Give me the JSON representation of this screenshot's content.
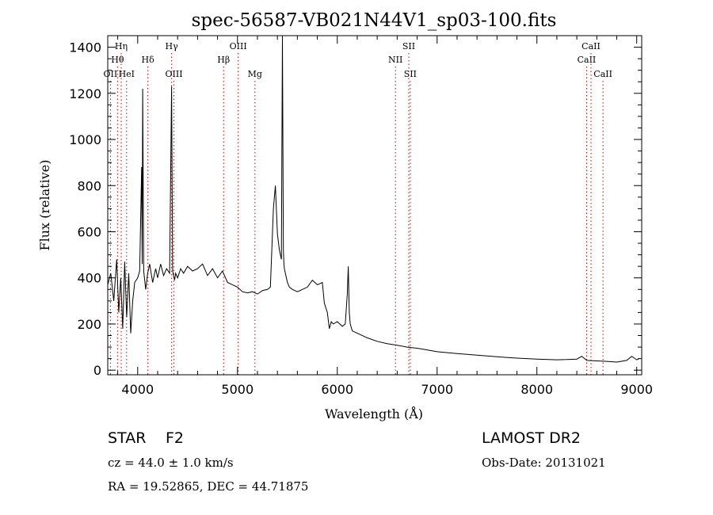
{
  "chart_data": {
    "type": "line",
    "title": "spec-56587-VB021N44V1_sp03-100.fits",
    "xlabel": "Wavelength (Å)",
    "ylabel": "Flux (relative)",
    "xlim": [
      3700,
      9050
    ],
    "ylim": [
      -20,
      1450
    ],
    "xticks": [
      4000,
      5000,
      6000,
      7000,
      8000,
      9000
    ],
    "yticks": [
      0,
      200,
      400,
      600,
      800,
      1000,
      1200,
      1400
    ],
    "grid": false,
    "series": [
      {
        "values_x": [
          3700,
          3730,
          3760,
          3790,
          3810,
          3830,
          3850,
          3870,
          3890,
          3910,
          3930,
          3950,
          3970,
          4000,
          4020,
          4040,
          4045,
          4050,
          4060,
          4080,
          4100,
          4120,
          4150,
          4180,
          4200,
          4230,
          4260,
          4290,
          4320,
          4340,
          4350,
          4360,
          4370,
          4380,
          4400,
          4430,
          4460,
          4500,
          4550,
          4600,
          4650,
          4700,
          4750,
          4800,
          4850,
          4860,
          4870,
          4900,
          4950,
          5000,
          5050,
          5100,
          5150,
          5200,
          5250,
          5300,
          5330,
          5360,
          5380,
          5400,
          5420,
          5440,
          5450,
          5460,
          5465,
          5470,
          5480,
          5500,
          5520,
          5550,
          5600,
          5650,
          5700,
          5750,
          5800,
          5850,
          5870,
          5900,
          5920,
          5940,
          5960,
          6000,
          6050,
          6080,
          6100,
          6110,
          6120,
          6130,
          6150,
          6200,
          6300,
          6400,
          6500,
          6600,
          6700,
          6800,
          6900,
          7000,
          7200,
          7400,
          7600,
          7800,
          8000,
          8200,
          8300,
          8400,
          8450,
          8500,
          8600,
          8700,
          8800,
          8900,
          8950,
          9000,
          9020
        ],
        "values_y": [
          370,
          420,
          300,
          480,
          250,
          400,
          180,
          470,
          230,
          420,
          160,
          300,
          380,
          400,
          430,
          880,
          460,
          1220,
          430,
          350,
          420,
          460,
          380,
          440,
          400,
          460,
          410,
          440,
          420,
          1230,
          430,
          410,
          390,
          420,
          400,
          440,
          420,
          450,
          430,
          440,
          460,
          410,
          440,
          400,
          430,
          420,
          410,
          380,
          370,
          360,
          340,
          335,
          340,
          330,
          345,
          350,
          360,
          700,
          800,
          590,
          520,
          480,
          1460,
          520,
          460,
          440,
          420,
          380,
          360,
          350,
          340,
          350,
          360,
          390,
          370,
          380,
          290,
          250,
          180,
          210,
          200,
          210,
          190,
          200,
          330,
          450,
          250,
          200,
          170,
          160,
          140,
          125,
          115,
          108,
          100,
          95,
          88,
          80,
          72,
          65,
          58,
          52,
          48,
          45,
          46,
          48,
          60,
          42,
          40,
          38,
          35,
          42,
          60,
          45,
          48
        ],
        "x": [
          3700,
          3730,
          3760,
          3790,
          3810,
          3830,
          3850,
          3870,
          3890,
          3910,
          3930,
          3950,
          3970,
          4000,
          4020,
          4040,
          4045,
          4050,
          4060,
          4080,
          4100,
          4120,
          4150,
          4180,
          4200,
          4230,
          4260,
          4290,
          4320,
          4340,
          4350,
          4360,
          4370,
          4380,
          4400,
          4430,
          4460,
          4500,
          4550,
          4600,
          4650,
          4700,
          4750,
          4800,
          4850,
          4860,
          4870,
          4900,
          4950,
          5000,
          5050,
          5100,
          5150,
          5200,
          5250,
          5300,
          5330,
          5360,
          5380,
          5400,
          5420,
          5440,
          5450,
          5460,
          5465,
          5470,
          5480,
          5500,
          5520,
          5550,
          5600,
          5650,
          5700,
          5750,
          5800,
          5850,
          5870,
          5900,
          5920,
          5940,
          5960,
          6000,
          6050,
          6080,
          6100,
          6110,
          6120,
          6130,
          6150,
          6200,
          6300,
          6400,
          6500,
          6600,
          6700,
          6800,
          6900,
          7000,
          7200,
          7400,
          7600,
          7800,
          8000,
          8200,
          8300,
          8400,
          8450,
          8500,
          8600,
          8700,
          8800,
          8900,
          8950,
          9000,
          9020
        ],
        "y": [
          370,
          420,
          300,
          480,
          250,
          400,
          180,
          470,
          230,
          420,
          160,
          300,
          380,
          400,
          430,
          880,
          460,
          1220,
          430,
          350,
          420,
          460,
          380,
          440,
          400,
          460,
          410,
          440,
          420,
          1230,
          430,
          410,
          390,
          420,
          400,
          440,
          420,
          450,
          430,
          440,
          460,
          410,
          440,
          400,
          430,
          420,
          410,
          380,
          370,
          360,
          340,
          335,
          340,
          330,
          345,
          350,
          360,
          700,
          800,
          590,
          520,
          480,
          1460,
          520,
          460,
          440,
          420,
          380,
          360,
          350,
          340,
          350,
          360,
          390,
          370,
          380,
          290,
          250,
          180,
          210,
          200,
          210,
          190,
          200,
          330,
          450,
          250,
          200,
          170,
          160,
          140,
          125,
          115,
          108,
          100,
          95,
          88,
          80,
          72,
          65,
          58,
          52,
          48,
          45,
          46,
          48,
          60,
          42,
          40,
          38,
          35,
          42,
          60,
          45,
          48
        ]
      }
    ],
    "line_markers": [
      {
        "label": "OII",
        "x": 3727,
        "row": 3
      },
      {
        "label": "Hθ",
        "x": 3798,
        "row": 2
      },
      {
        "label": "Hη",
        "x": 3835,
        "row": 1
      },
      {
        "label": "HeI",
        "x": 3889,
        "row": 3
      },
      {
        "label": "Hδ",
        "x": 4102,
        "row": 2
      },
      {
        "label": "Hγ",
        "x": 4340,
        "row": 1
      },
      {
        "label": "OIII",
        "x": 4363,
        "row": 3
      },
      {
        "label": "Hβ",
        "x": 4861,
        "row": 2
      },
      {
        "label": "OIII",
        "x": 5007,
        "row": 1
      },
      {
        "label": "Mg",
        "x": 5175,
        "row": 3
      },
      {
        "label": "NII",
        "x": 6583,
        "row": 2
      },
      {
        "label": "SII",
        "x": 6716,
        "row": 1
      },
      {
        "label": "SII",
        "x": 6731,
        "row": 3
      },
      {
        "label": "CaII",
        "x": 8498,
        "row": 2
      },
      {
        "label": "CaII",
        "x": 8542,
        "row": 1
      },
      {
        "label": "CaII",
        "x": 8662,
        "row": 3
      }
    ],
    "marker_color": "#cc0000",
    "line_color": "#000000"
  },
  "info": {
    "class": "STAR",
    "subclass": "F2",
    "survey": "LAMOST DR2",
    "cz": "cz = 44.0 ± 1.0 km/s",
    "obs_date": "Obs-Date: 20131021",
    "radec": "RA =  19.52865, DEC =  44.71875"
  }
}
